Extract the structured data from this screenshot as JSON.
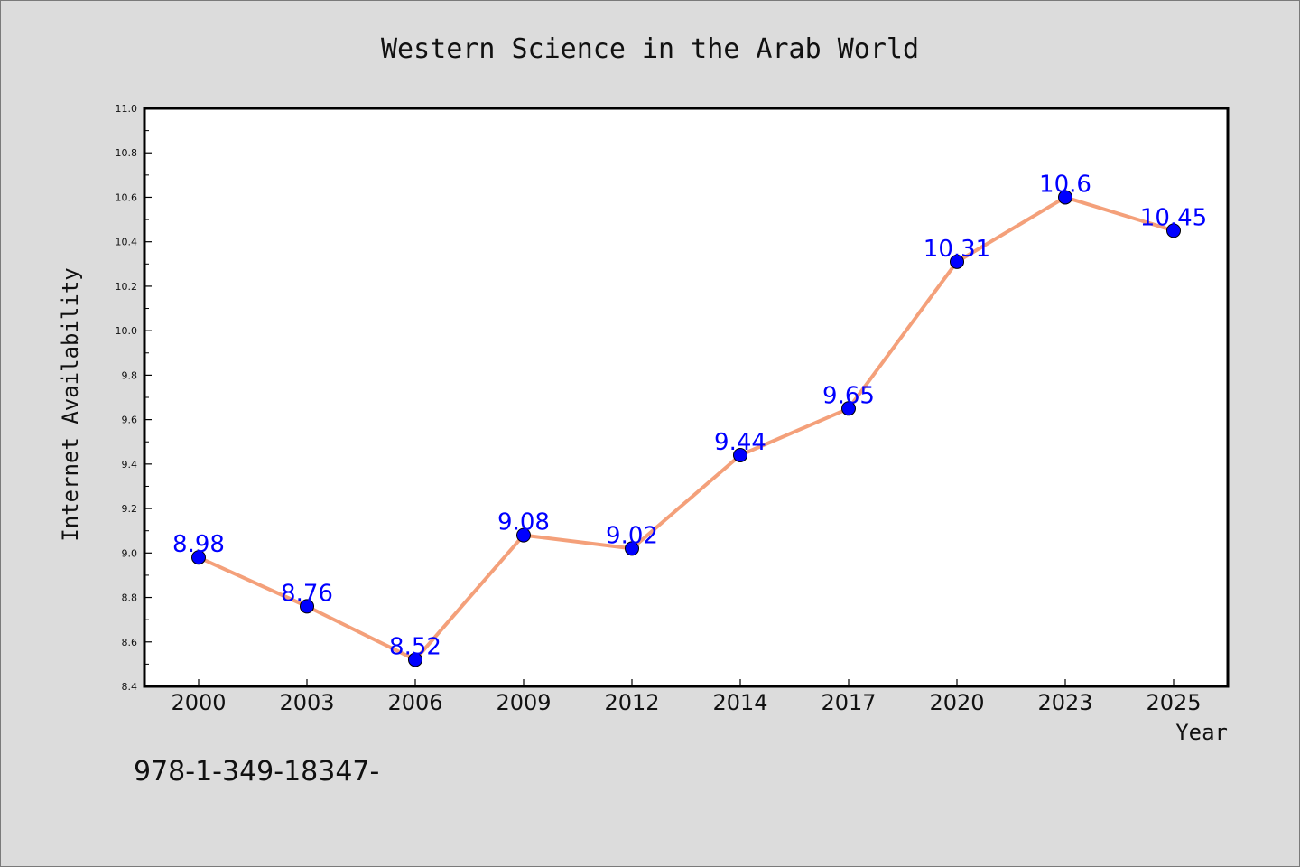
{
  "chart_data": {
    "type": "line",
    "title": "Western Science in the Arab World",
    "xlabel": "Year",
    "ylabel": "Internet Availability",
    "categories": [
      "2000",
      "2003",
      "2006",
      "2009",
      "2012",
      "2014",
      "2017",
      "2020",
      "2023",
      "2025"
    ],
    "values": [
      8.98,
      8.76,
      8.52,
      9.08,
      9.02,
      9.44,
      9.65,
      10.31,
      10.6,
      10.45
    ],
    "data_labels": [
      "8.98",
      "8.76",
      "8.52",
      "9.08",
      "9.02",
      "9.44",
      "9.65",
      "10.31",
      "10.6",
      "10.45"
    ],
    "ylim": [
      8.4,
      11.0
    ],
    "yticks": [
      "8.4",
      "8.6",
      "8.8",
      "9.0",
      "9.2",
      "9.4",
      "9.6",
      "9.8",
      "10.0",
      "10.2",
      "10.4",
      "10.6",
      "10.8",
      "11.0"
    ],
    "grid": false,
    "legend": "none",
    "colors": {
      "line": "#f4a07a",
      "marker": "#0000ff",
      "label": "#0000ff",
      "background": "#dcdcdc",
      "plot_area": "#ffffff"
    }
  },
  "footer": {
    "text": "978-1-349-18347-"
  }
}
